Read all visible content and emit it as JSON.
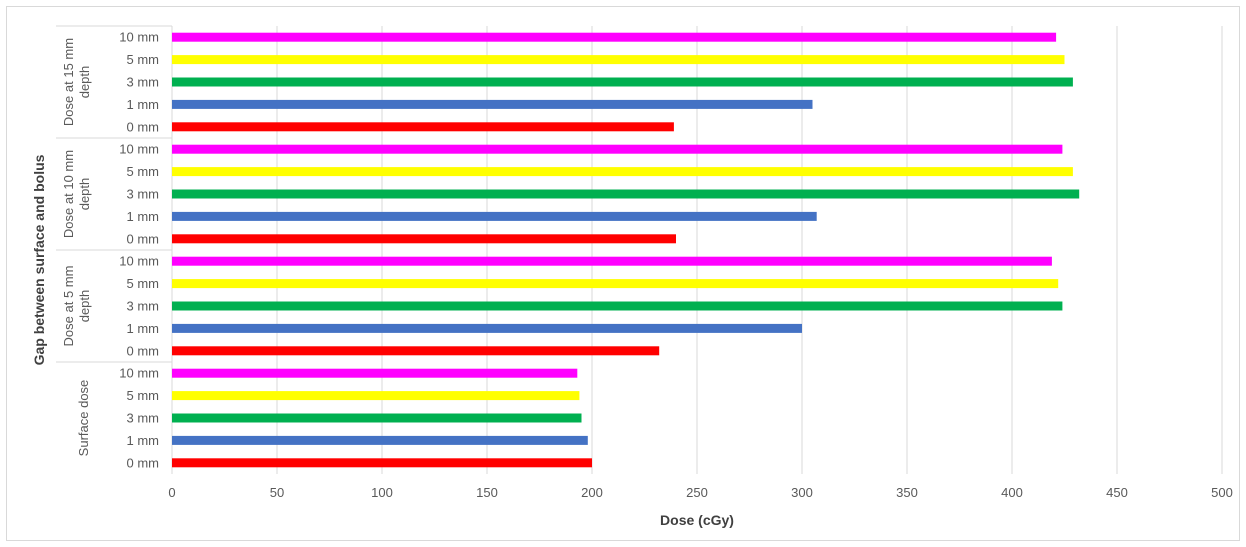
{
  "chart_data": {
    "type": "bar",
    "orientation": "horizontal",
    "xlabel": "Dose (cGy)",
    "ylabel": "Gap between surface and bolus",
    "xlim": [
      0,
      500
    ],
    "xticks": [
      0,
      50,
      100,
      150,
      200,
      250,
      300,
      350,
      400,
      450,
      500
    ],
    "grid": true,
    "legend": "none",
    "groups": [
      {
        "name": "Surface dose",
        "categories": [
          "0 mm",
          "1 mm",
          "3 mm",
          "5 mm",
          "10 mm"
        ],
        "values": [
          200,
          198,
          195,
          194,
          193
        ]
      },
      {
        "name": "Dose at 5 mm depth",
        "categories": [
          "0 mm",
          "1 mm",
          "3 mm",
          "5 mm",
          "10 mm"
        ],
        "values": [
          232,
          300,
          424,
          422,
          419
        ]
      },
      {
        "name": "Dose at 10 mm depth",
        "categories": [
          "0 mm",
          "1 mm",
          "3 mm",
          "5 mm",
          "10 mm"
        ],
        "values": [
          240,
          307,
          432,
          429,
          424
        ]
      },
      {
        "name": "Dose at 15 mm depth",
        "categories": [
          "0 mm",
          "1 mm",
          "3 mm",
          "5 mm",
          "10 mm"
        ],
        "values": [
          239,
          305,
          429,
          425,
          421
        ]
      }
    ],
    "category_colors": {
      "0 mm": "#ff0000",
      "1 mm": "#4472c4",
      "3 mm": "#00b050",
      "5 mm": "#ffff00",
      "10 mm": "#ff00ff"
    }
  },
  "colors": {
    "gridline": "#d9d9d9",
    "text": "#595959",
    "axis_title": "#404040"
  }
}
